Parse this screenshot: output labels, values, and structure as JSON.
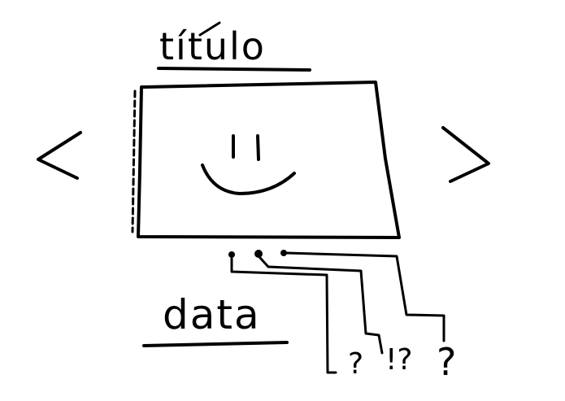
{
  "title": "título",
  "date": "data",
  "markers": [
    "?",
    "!?",
    "?"
  ],
  "colors": {
    "ink": "#000000",
    "paper": "#ffffff"
  },
  "icons": {
    "prev": "chevron-left-icon",
    "next": "chevron-right-icon",
    "face": "smiley-face-icon"
  }
}
